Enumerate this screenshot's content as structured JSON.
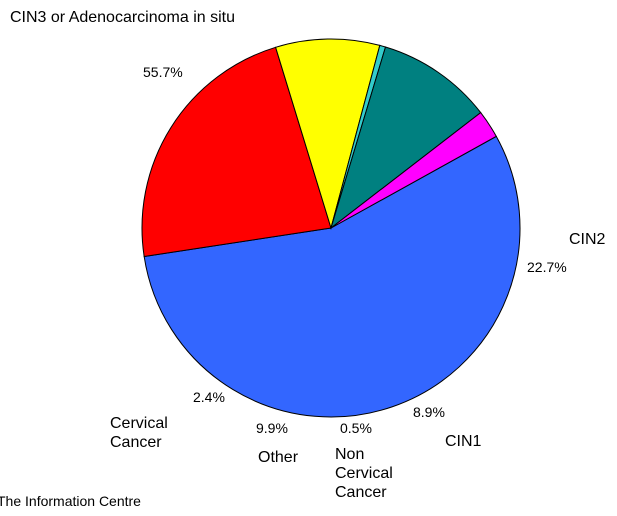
{
  "chart_data": {
    "type": "pie",
    "categories": [
      "CIN3 or Adenocarcinoma in situ",
      "CIN2",
      "CIN1",
      "Non Cervical Cancer",
      "Other",
      "Cervical Cancer"
    ],
    "values": [
      55.7,
      22.7,
      8.9,
      0.5,
      9.9,
      2.4
    ],
    "value_labels": [
      "55.7%",
      "22.7%",
      "8.9%",
      "0.5%",
      "9.9%",
      "2.4%"
    ],
    "colors": [
      "#3366ff",
      "#ff0000",
      "#ffff00",
      "#33cccc",
      "#008080",
      "#ff00ff"
    ],
    "source": "The Information Centre"
  }
}
